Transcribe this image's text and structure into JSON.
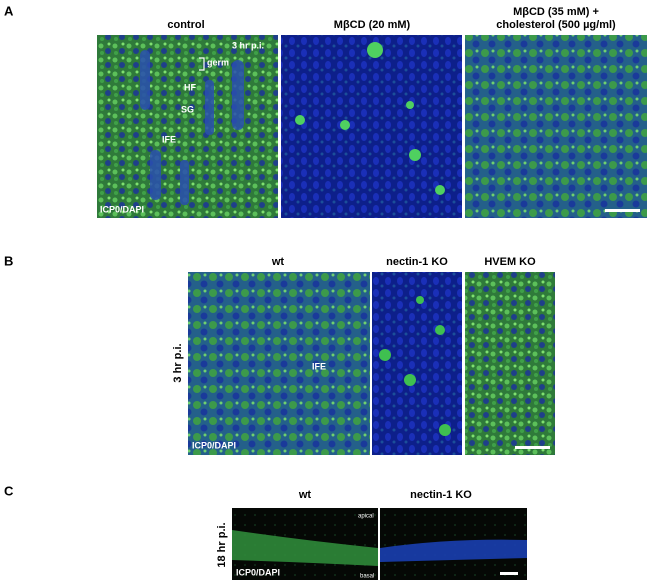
{
  "panel_a": {
    "label": "A",
    "column_titles": [
      "control",
      "MβCD (20 mM)",
      "MβCD (35 mM) +",
      "cholesterol (500 µg/ml)"
    ],
    "timepoint": "3 hr p.i.",
    "annotations": [
      "germ",
      "HF",
      "SG",
      "IFE"
    ],
    "stain": "ICP0/DAPI"
  },
  "panel_b": {
    "label": "B",
    "column_titles": [
      "wt",
      "nectin-1 KO",
      "HVEM KO"
    ],
    "row_label": "3 hr p.i.",
    "annotation": "IFE",
    "stain": "ICP0/DAPI"
  },
  "panel_c": {
    "label": "C",
    "column_titles": [
      "wt",
      "nectin-1 KO"
    ],
    "row_label": "18 hr p.i.",
    "annotations": [
      "apical",
      "basal"
    ],
    "stain": "ICP0/DAPI"
  }
}
